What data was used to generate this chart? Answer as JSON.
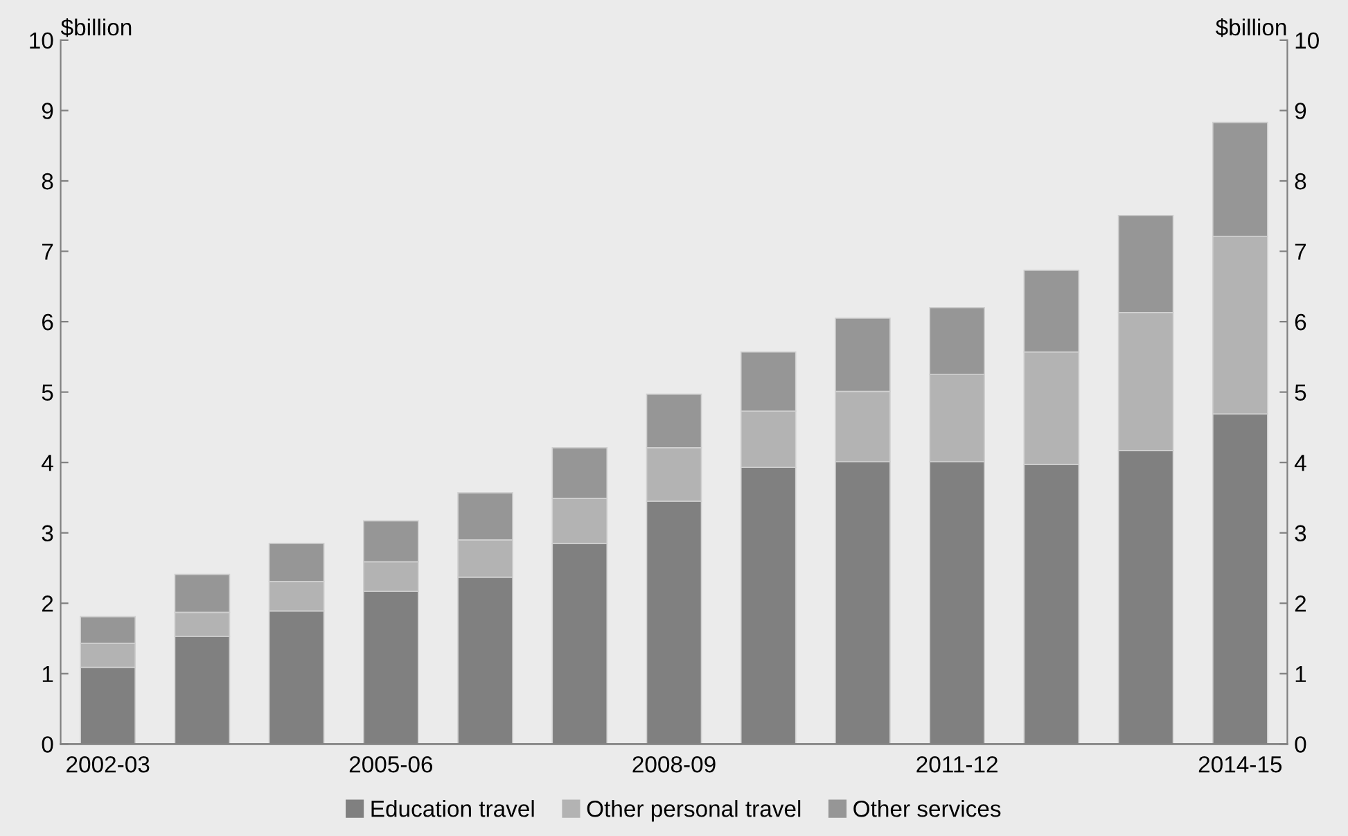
{
  "chart_data": {
    "type": "bar",
    "stacked": true,
    "ylabel": "$billion",
    "y2label": "$billion",
    "categories": [
      "2002-03",
      null,
      null,
      "2005-06",
      null,
      null,
      "2008-09",
      null,
      null,
      "2011-12",
      null,
      null,
      "2014-15"
    ],
    "series": [
      {
        "name": "Education travel",
        "color": "#808080",
        "values": [
          1.09,
          1.53,
          1.89,
          2.17,
          2.37,
          2.85,
          3.45,
          3.93,
          4.01,
          4.01,
          3.97,
          4.17,
          4.69
        ]
      },
      {
        "name": "Other personal travel",
        "color": "#b3b3b3",
        "values": [
          0.34,
          0.34,
          0.42,
          0.42,
          0.53,
          0.64,
          0.76,
          0.8,
          1.0,
          1.24,
          1.6,
          1.96,
          2.52
        ]
      },
      {
        "name": "Other services",
        "color": "#969696",
        "values": [
          0.38,
          0.54,
          0.54,
          0.58,
          0.67,
          0.72,
          0.76,
          0.84,
          1.04,
          0.95,
          1.16,
          1.38,
          1.62
        ]
      }
    ],
    "ylim": [
      0,
      10
    ],
    "yticks": [
      0,
      1,
      2,
      3,
      4,
      5,
      6,
      7,
      8,
      9,
      10
    ],
    "y2lim": [
      0,
      10
    ],
    "y2ticks": [
      0,
      1,
      2,
      3,
      4,
      5,
      6,
      7,
      8,
      9,
      10
    ],
    "grid": false,
    "legend": "bottom"
  }
}
